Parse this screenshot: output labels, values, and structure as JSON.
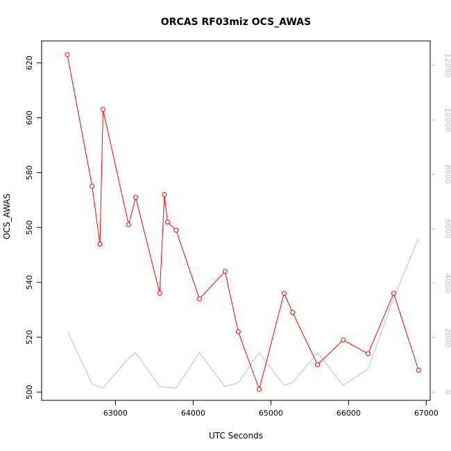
{
  "chart_data": {
    "type": "line",
    "title": "ORCAS RF03miz OCS_AWAS",
    "xlabel": "UTC Seconds",
    "ylabel": "OCS_AWAS",
    "xlim": [
      62050,
      67050
    ],
    "ylim": [
      497,
      628
    ],
    "y2lim": [
      -300,
      12900
    ],
    "x_ticks": [
      63000,
      64000,
      65000,
      66000,
      67000
    ],
    "y_ticks": [
      500,
      520,
      540,
      560,
      580,
      600,
      620
    ],
    "y2_ticks": [
      0,
      2000,
      4000,
      6000,
      8000,
      10000,
      12000
    ],
    "grid": false,
    "series": [
      {
        "axis": "left",
        "color": "#ff0000",
        "markers": "open-circle",
        "x": [
          62380,
          62700,
          62800,
          62840,
          63170,
          63260,
          63570,
          63630,
          63670,
          63780,
          64080,
          64410,
          64580,
          64850,
          65170,
          65280,
          65600,
          65930,
          66250,
          66580,
          66900
        ],
        "values": [
          623,
          575,
          554,
          603,
          561,
          571,
          536,
          572,
          562,
          559,
          534,
          544,
          522,
          501,
          536,
          529,
          510,
          519,
          514,
          536,
          508
        ]
      },
      {
        "axis": "right",
        "color": "#bebebe",
        "markers": "none",
        "x": [
          62380,
          62700,
          62840,
          63170,
          63260,
          63570,
          63780,
          64080,
          64410,
          64580,
          64850,
          65170,
          65280,
          65600,
          65930,
          66250,
          66580,
          66900
        ],
        "values": [
          2250,
          300,
          150,
          1250,
          1450,
          200,
          150,
          1450,
          200,
          350,
          1450,
          250,
          350,
          1450,
          250,
          850,
          3450,
          5650
        ]
      }
    ]
  }
}
